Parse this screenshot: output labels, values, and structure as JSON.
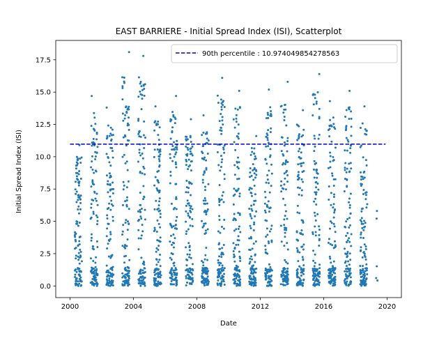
{
  "chart_data": {
    "type": "scatter",
    "title": "EAST BARRIERE - Initial Spread Index (ISI), Scatterplot",
    "xlabel": "Date",
    "ylabel": "Initial Spread Index (ISI)",
    "x_tick_labels": [
      "2000",
      "2004",
      "2008",
      "2012",
      "2016",
      "2020"
    ],
    "x_tick_values": [
      2000,
      2004,
      2008,
      2012,
      2016,
      2020
    ],
    "y_tick_labels": [
      "0.0",
      "2.5",
      "5.0",
      "7.5",
      "10.0",
      "12.5",
      "15.0",
      "17.5"
    ],
    "y_tick_values": [
      0,
      2.5,
      5,
      7.5,
      10,
      12.5,
      15,
      17.5
    ],
    "xlim": [
      1999.1,
      2020.9
    ],
    "ylim": [
      -0.9,
      19.0
    ],
    "grid": false,
    "legend_placement": "top-right",
    "percentile_line": {
      "label": "90th percentile : 10.974049854278563",
      "value": 10.974049854278563,
      "x_range": [
        2000.0,
        2019.9
      ],
      "color": "#0000cc",
      "style": "dashed"
    },
    "series": [
      {
        "color": "#1f77b4",
        "seasons": [
          {
            "year": 2000,
            "x_start": 2000.3,
            "x_end": 2000.75,
            "max": 10.9,
            "count": 120
          },
          {
            "year": 2001,
            "x_start": 2001.3,
            "x_end": 2001.75,
            "max": 14.7,
            "count": 120
          },
          {
            "year": 2002,
            "x_start": 2002.3,
            "x_end": 2002.75,
            "max": 13.8,
            "count": 120
          },
          {
            "year": 2003,
            "x_start": 2003.3,
            "x_end": 2003.75,
            "max": 18.1,
            "count": 120
          },
          {
            "year": 2004,
            "x_start": 2004.3,
            "x_end": 2004.75,
            "max": 17.8,
            "count": 120
          },
          {
            "year": 2005,
            "x_start": 2005.3,
            "x_end": 2005.75,
            "max": 13.9,
            "count": 120
          },
          {
            "year": 2006,
            "x_start": 2006.3,
            "x_end": 2006.75,
            "max": 14.7,
            "count": 120
          },
          {
            "year": 2007,
            "x_start": 2007.3,
            "x_end": 2007.75,
            "max": 12.9,
            "count": 120
          },
          {
            "year": 2008,
            "x_start": 2008.3,
            "x_end": 2008.75,
            "max": 13.2,
            "count": 120
          },
          {
            "year": 2009,
            "x_start": 2009.3,
            "x_end": 2009.75,
            "max": 16.1,
            "count": 120
          },
          {
            "year": 2010,
            "x_start": 2010.3,
            "x_end": 2010.75,
            "max": 15.1,
            "count": 120
          },
          {
            "year": 2011,
            "x_start": 2011.3,
            "x_end": 2011.75,
            "max": 11.6,
            "count": 120
          },
          {
            "year": 2012,
            "x_start": 2012.3,
            "x_end": 2012.75,
            "max": 15.2,
            "count": 120
          },
          {
            "year": 2013,
            "x_start": 2013.3,
            "x_end": 2013.75,
            "max": 15.8,
            "count": 120
          },
          {
            "year": 2014,
            "x_start": 2014.3,
            "x_end": 2014.75,
            "max": 13.6,
            "count": 120
          },
          {
            "year": 2015,
            "x_start": 2015.3,
            "x_end": 2015.75,
            "max": 16.4,
            "count": 120
          },
          {
            "year": 2016,
            "x_start": 2016.3,
            "x_end": 2016.75,
            "max": 14.3,
            "count": 120
          },
          {
            "year": 2017,
            "x_start": 2017.3,
            "x_end": 2017.75,
            "max": 15.1,
            "count": 120
          },
          {
            "year": 2018,
            "x_start": 2018.3,
            "x_end": 2018.75,
            "max": 13.9,
            "count": 120
          },
          {
            "year": 2019,
            "x_start": 2019.3,
            "x_end": 2019.45,
            "max": 5.8,
            "count": 5
          }
        ]
      }
    ]
  }
}
